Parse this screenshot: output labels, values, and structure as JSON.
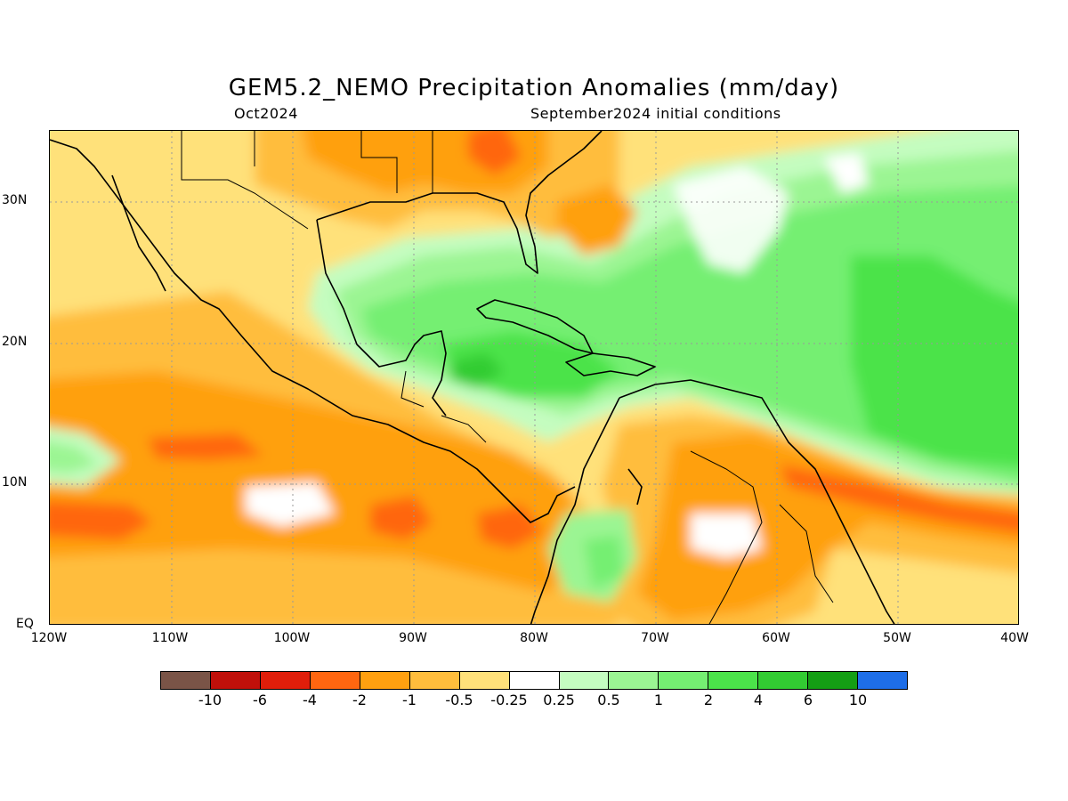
{
  "header": {
    "title": "GEM5.2_NEMO Precipitation Anomalies (mm/day)",
    "valid_month": "Oct2024",
    "initial_conditions": "September2024 initial conditions"
  },
  "map": {
    "y_ticks": [
      "30N",
      "20N",
      "10N",
      "EQ"
    ],
    "x_ticks": [
      "120W",
      "110W",
      "100W",
      "90W",
      "80W",
      "70W",
      "60W",
      "50W",
      "40W"
    ]
  },
  "colorbar": {
    "colors": [
      "#7a5447",
      "#c0100a",
      "#e01e0a",
      "#ff6610",
      "#ffa010",
      "#ffbd3c",
      "#ffe17a",
      "#ffffff",
      "#c4fdc0",
      "#9bf593",
      "#75ef72",
      "#4be34a",
      "#32cc32",
      "#149e14",
      "#1e6ee8"
    ],
    "labels": [
      "-10",
      "-6",
      "-4",
      "-2",
      "-1",
      "-0.5",
      "-0.25",
      "0.25",
      "0.5",
      "1",
      "2",
      "4",
      "6",
      "10"
    ]
  }
}
